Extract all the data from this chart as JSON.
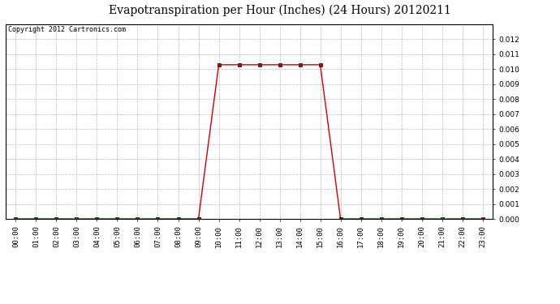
{
  "title": "Evapotranspiration per Hour (Inches) (24 Hours) 20120211",
  "copyright": "Copyright 2012 Cartronics.com",
  "hours": [
    0,
    1,
    2,
    3,
    4,
    5,
    6,
    7,
    8,
    9,
    10,
    11,
    12,
    13,
    14,
    15,
    16,
    17,
    18,
    19,
    20,
    21,
    22,
    23
  ],
  "values": [
    0.0,
    0.0,
    0.0,
    0.0,
    0.0,
    0.0,
    0.0,
    0.0,
    0.0,
    0.0,
    0.0103,
    0.0103,
    0.0103,
    0.0103,
    0.0103,
    0.0103,
    0.0,
    0.0,
    0.0,
    0.0,
    0.0,
    0.0,
    0.0,
    0.0
  ],
  "line_color": "#cc0000",
  "marker": "s",
  "marker_size": 2.5,
  "background_color": "#ffffff",
  "plot_bg_color": "#ffffff",
  "grid_color": "#aaaaaa",
  "ylim": [
    0,
    0.013
  ],
  "yticks": [
    0.0,
    0.001,
    0.002,
    0.003,
    0.004,
    0.005,
    0.006,
    0.007,
    0.008,
    0.009,
    0.01,
    0.011,
    0.012
  ],
  "tick_label_fontsize": 6.5,
  "title_fontsize": 10,
  "copyright_fontsize": 6
}
